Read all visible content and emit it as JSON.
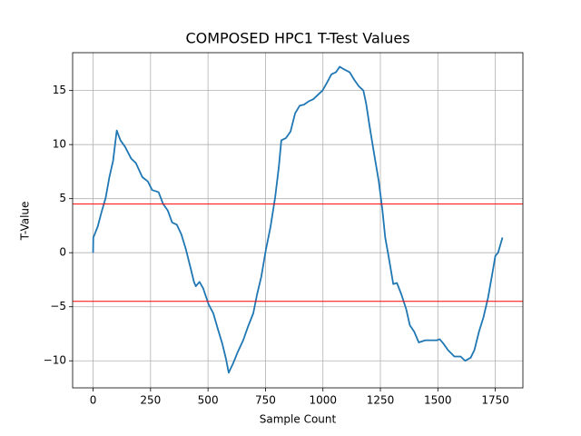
{
  "chart_data": {
    "type": "line",
    "title": "COMPOSED HPC1 T-Test Values",
    "x_label": "Sample Count",
    "y_label": "T-Value",
    "x": [
      0,
      1,
      20,
      36,
      55,
      71,
      87,
      103,
      119,
      139,
      166,
      186,
      214,
      238,
      257,
      285,
      305,
      325,
      344,
      364,
      384,
      404,
      424,
      439,
      447,
      463,
      479,
      503,
      523,
      542,
      562,
      578,
      590,
      610,
      629,
      653,
      673,
      697,
      713,
      732,
      752,
      772,
      792,
      808,
      819,
      839,
      859,
      879,
      899,
      918,
      938,
      958,
      978,
      998,
      1017,
      1037,
      1057,
      1073,
      1097,
      1116,
      1136,
      1156,
      1176,
      1188,
      1203,
      1223,
      1243,
      1259,
      1271,
      1287,
      1306,
      1322,
      1342,
      1362,
      1378,
      1397,
      1417,
      1445,
      1473,
      1496,
      1508,
      1524,
      1544,
      1572,
      1599,
      1619,
      1643,
      1659,
      1679,
      1698,
      1718,
      1738,
      1750,
      1762,
      1781
    ],
    "series": [
      {
        "color": "#1f77b4",
        "values": [
          0.0,
          1.4,
          2.4,
          3.7,
          5.1,
          7.0,
          8.5,
          11.3,
          10.4,
          9.8,
          8.7,
          8.3,
          7.0,
          6.6,
          5.8,
          5.6,
          4.5,
          3.9,
          2.8,
          2.6,
          1.7,
          0.3,
          -1.4,
          -2.7,
          -3.1,
          -2.7,
          -3.3,
          -4.8,
          -5.6,
          -7.0,
          -8.4,
          -9.8,
          -11.1,
          -10.2,
          -9.2,
          -8.1,
          -6.9,
          -5.6,
          -3.9,
          -2.2,
          0.3,
          2.4,
          5.1,
          7.9,
          10.4,
          10.6,
          11.2,
          12.9,
          13.6,
          13.7,
          14.0,
          14.2,
          14.6,
          15.0,
          15.7,
          16.5,
          16.7,
          17.2,
          16.9,
          16.7,
          16.0,
          15.4,
          15.0,
          13.8,
          11.7,
          9.1,
          6.6,
          3.9,
          1.4,
          -0.5,
          -2.9,
          -2.8,
          -3.9,
          -5.2,
          -6.7,
          -7.3,
          -8.3,
          -8.1,
          -8.1,
          -8.1,
          -8.0,
          -8.4,
          -9.0,
          -9.6,
          -9.6,
          -10.0,
          -9.7,
          -9.0,
          -7.3,
          -6.0,
          -4.2,
          -1.8,
          -0.3,
          0.0,
          1.4
        ]
      }
    ],
    "hlines": [
      {
        "value": 4.5,
        "color": "#ff0000"
      },
      {
        "value": -4.5,
        "color": "#ff0000"
      }
    ],
    "xlim": [
      -89,
      1870
    ],
    "ylim": [
      -12.5,
      18.5
    ],
    "xticks": [
      0,
      250,
      500,
      750,
      1000,
      1250,
      1500,
      1750
    ],
    "yticks": [
      {
        "value": -10,
        "label": "−10"
      },
      {
        "value": -5,
        "label": "−5"
      },
      0,
      5,
      10,
      15
    ],
    "grid": true
  }
}
